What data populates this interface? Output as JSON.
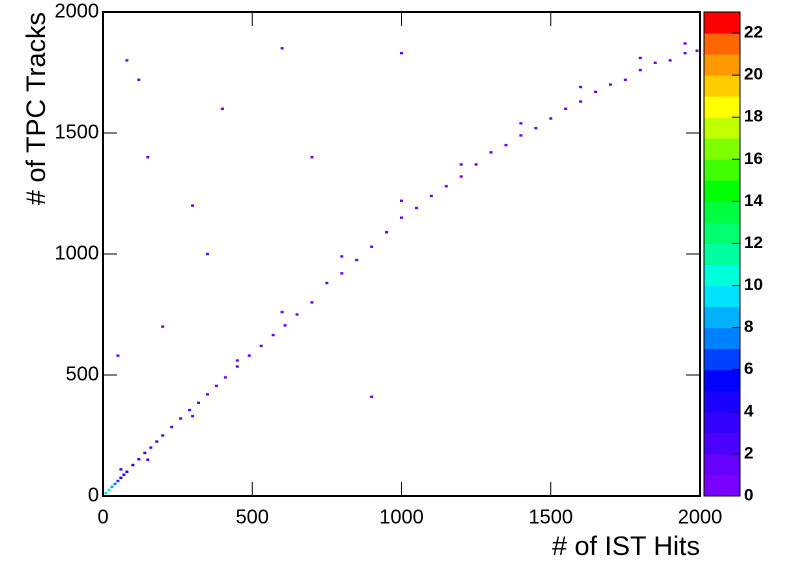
{
  "chart_data": {
    "type": "heatmap",
    "x_label": "# of IST Hits",
    "y_label": "# of TPC Tracks",
    "xlim": [
      0,
      2000
    ],
    "ylim": [
      0,
      2000
    ],
    "xticks": [
      0,
      500,
      1000,
      1500,
      2000
    ],
    "yticks": [
      0,
      500,
      1000,
      1500,
      2000
    ],
    "zlim": [
      0,
      23
    ],
    "zticks": [
      0,
      2,
      4,
      6,
      8,
      10,
      12,
      14,
      16,
      18,
      20,
      22
    ],
    "palette": [
      "#7a00ff",
      "#6600ff",
      "#4c00ff",
      "#3300ff",
      "#1a00ff",
      "#0000ff",
      "#0040ff",
      "#0080ff",
      "#00b0ff",
      "#00e0ff",
      "#00ffdd",
      "#00ffa0",
      "#00ff70",
      "#00ff40",
      "#00ff00",
      "#40ff00",
      "#80ff00",
      "#c0ff00",
      "#ffff00",
      "#ffcc00",
      "#ff9900",
      "#ff6600",
      "#ff0000"
    ],
    "x": [
      10,
      20,
      30,
      40,
      50,
      60,
      70,
      80,
      100,
      120,
      140,
      160,
      180,
      200,
      230,
      260,
      290,
      320,
      350,
      380,
      410,
      450,
      490,
      530,
      570,
      610,
      650,
      700,
      750,
      800,
      850,
      900,
      950,
      1000,
      1050,
      1100,
      1150,
      1200,
      1250,
      1300,
      1350,
      1400,
      1450,
      1500,
      1550,
      1600,
      1650,
      1700,
      1750,
      1800,
      1850,
      1900,
      1950,
      1990,
      60,
      150,
      300,
      450,
      600,
      800,
      1000,
      1200,
      1400,
      1600,
      1800,
      1950,
      80,
      900,
      120,
      600,
      400,
      350,
      200,
      50,
      150,
      1000,
      700,
      300
    ],
    "y": [
      12,
      25,
      38,
      50,
      62,
      75,
      88,
      100,
      128,
      152,
      178,
      200,
      225,
      250,
      285,
      320,
      355,
      385,
      420,
      455,
      490,
      535,
      580,
      620,
      665,
      705,
      750,
      800,
      880,
      920,
      975,
      1030,
      1090,
      1150,
      1190,
      1240,
      1280,
      1320,
      1370,
      1420,
      1450,
      1490,
      1520,
      1560,
      1600,
      1630,
      1670,
      1700,
      1720,
      1760,
      1790,
      1800,
      1830,
      1840,
      110,
      150,
      330,
      560,
      760,
      990,
      1220,
      1370,
      1540,
      1690,
      1810,
      1870,
      1800,
      410,
      1720,
      1850,
      1600,
      1000,
      700,
      580,
      1400,
      1830,
      1400,
      1200
    ],
    "values": [
      9,
      11,
      8,
      7,
      6,
      5,
      4,
      4,
      3,
      3,
      3,
      2,
      2,
      2,
      2,
      2,
      1,
      1,
      1,
      1,
      1,
      1,
      1,
      1,
      1,
      1,
      1,
      1,
      1,
      1,
      1,
      1,
      1,
      1,
      1,
      1,
      1,
      1,
      1,
      1,
      1,
      1,
      1,
      1,
      1,
      1,
      1,
      1,
      1,
      1,
      1,
      1,
      1,
      1,
      3,
      2,
      1,
      1,
      1,
      1,
      1,
      1,
      1,
      1,
      1,
      1,
      1,
      1,
      1,
      1,
      1,
      1,
      1,
      1,
      1,
      1,
      1,
      1
    ]
  }
}
